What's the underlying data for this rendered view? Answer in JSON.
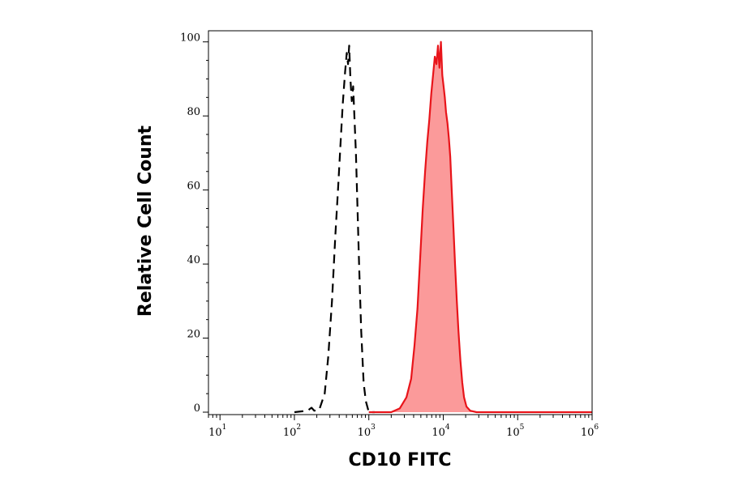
{
  "chart_data": {
    "type": "area",
    "xlabel": "CD10 FITC",
    "ylabel": "Relative Cell Count",
    "x_scale": "log",
    "xlim": [
      7,
      1000000
    ],
    "ylim": [
      0,
      103
    ],
    "x_ticks": [
      {
        "base": "10",
        "exp": "1",
        "value": 10
      },
      {
        "base": "10",
        "exp": "2",
        "value": 100
      },
      {
        "base": "10",
        "exp": "3",
        "value": 1000
      },
      {
        "base": "10",
        "exp": "4",
        "value": 10000
      },
      {
        "base": "10",
        "exp": "5",
        "value": 100000
      },
      {
        "base": "10",
        "exp": "6",
        "value": 1000000
      }
    ],
    "y_ticks": [
      {
        "label": "0",
        "value": 0
      },
      {
        "label": "20",
        "value": 20
      },
      {
        "label": "40",
        "value": 40
      },
      {
        "label": "60",
        "value": 60
      },
      {
        "label": "80",
        "value": 80
      },
      {
        "label": "100",
        "value": 100
      }
    ],
    "grid": false,
    "series": [
      {
        "style": "dashed-outline",
        "color": "#000000",
        "points": [
          {
            "x": 100,
            "y": 0
          },
          {
            "x": 150,
            "y": 0.4
          },
          {
            "x": 170,
            "y": 1.2
          },
          {
            "x": 185,
            "y": 0.4
          },
          {
            "x": 215,
            "y": 0.6
          },
          {
            "x": 255,
            "y": 5
          },
          {
            "x": 285,
            "y": 15
          },
          {
            "x": 320,
            "y": 30
          },
          {
            "x": 355,
            "y": 48
          },
          {
            "x": 385,
            "y": 60
          },
          {
            "x": 415,
            "y": 72
          },
          {
            "x": 445,
            "y": 83
          },
          {
            "x": 480,
            "y": 92
          },
          {
            "x": 505,
            "y": 97
          },
          {
            "x": 525,
            "y": 94
          },
          {
            "x": 545,
            "y": 99
          },
          {
            "x": 565,
            "y": 90
          },
          {
            "x": 590,
            "y": 84
          },
          {
            "x": 615,
            "y": 88
          },
          {
            "x": 640,
            "y": 80
          },
          {
            "x": 670,
            "y": 70
          },
          {
            "x": 700,
            "y": 57
          },
          {
            "x": 740,
            "y": 40
          },
          {
            "x": 790,
            "y": 22
          },
          {
            "x": 850,
            "y": 8
          },
          {
            "x": 910,
            "y": 3
          },
          {
            "x": 1000,
            "y": 0
          },
          {
            "x": 1200,
            "y": 0
          }
        ]
      },
      {
        "style": "filled",
        "color": "#e8141a",
        "fill": "#fb9a9a",
        "points": [
          {
            "x": 1000,
            "y": 0
          },
          {
            "x": 2000,
            "y": 0
          },
          {
            "x": 2600,
            "y": 1
          },
          {
            "x": 3200,
            "y": 4
          },
          {
            "x": 3700,
            "y": 9
          },
          {
            "x": 4100,
            "y": 18
          },
          {
            "x": 4500,
            "y": 28
          },
          {
            "x": 4900,
            "y": 42
          },
          {
            "x": 5300,
            "y": 55
          },
          {
            "x": 5700,
            "y": 65
          },
          {
            "x": 6100,
            "y": 73
          },
          {
            "x": 6500,
            "y": 79
          },
          {
            "x": 6900,
            "y": 86
          },
          {
            "x": 7300,
            "y": 91
          },
          {
            "x": 7700,
            "y": 96
          },
          {
            "x": 8100,
            "y": 94
          },
          {
            "x": 8500,
            "y": 99
          },
          {
            "x": 8900,
            "y": 93
          },
          {
            "x": 9300,
            "y": 100
          },
          {
            "x": 9700,
            "y": 91
          },
          {
            "x": 10100,
            "y": 88
          },
          {
            "x": 10500,
            "y": 85
          },
          {
            "x": 10900,
            "y": 81
          },
          {
            "x": 11400,
            "y": 78
          },
          {
            "x": 11900,
            "y": 74
          },
          {
            "x": 12400,
            "y": 69
          },
          {
            "x": 13000,
            "y": 60
          },
          {
            "x": 13700,
            "y": 50
          },
          {
            "x": 14400,
            "y": 40
          },
          {
            "x": 15200,
            "y": 30
          },
          {
            "x": 16000,
            "y": 22
          },
          {
            "x": 17000,
            "y": 14
          },
          {
            "x": 18000,
            "y": 8
          },
          {
            "x": 19000,
            "y": 4
          },
          {
            "x": 20500,
            "y": 1.5
          },
          {
            "x": 23000,
            "y": 0.4
          },
          {
            "x": 28000,
            "y": 0
          },
          {
            "x": 1000000,
            "y": 0
          }
        ]
      }
    ]
  }
}
